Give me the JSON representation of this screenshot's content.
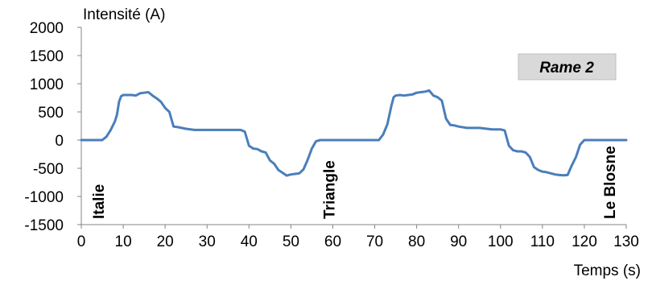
{
  "chart_data": {
    "type": "line",
    "ylabel": "Intensité (A)",
    "xlabel": "Temps (s)",
    "xlim": [
      0,
      130
    ],
    "ylim": [
      -1500,
      2000
    ],
    "x_ticks": [
      0,
      10,
      20,
      30,
      40,
      50,
      60,
      70,
      80,
      90,
      100,
      110,
      120,
      130
    ],
    "y_ticks": [
      -1500,
      -1000,
      -500,
      0,
      500,
      1000,
      1500,
      2000
    ],
    "grid": false,
    "line_color": "#4a7ebb",
    "badge": "Rame 2",
    "station_labels": [
      {
        "label": "Italie",
        "x": 4
      },
      {
        "label": "Triangle",
        "x": 59
      },
      {
        "label": "Le Blosne",
        "x": 126
      }
    ],
    "series": [
      {
        "x": [
          0,
          4,
          5,
          6,
          7,
          8,
          8.5,
          9,
          9.5,
          10,
          11,
          12,
          13,
          14,
          15,
          16,
          17,
          18,
          19,
          20,
          21,
          22,
          23,
          25,
          27,
          30,
          35,
          37,
          38,
          39,
          40,
          41,
          42,
          43,
          44,
          45,
          46,
          47,
          48,
          49,
          50,
          51,
          52,
          53,
          54,
          55,
          56,
          57,
          60,
          65,
          70,
          71,
          72,
          73,
          74,
          74.5,
          75,
          76,
          77,
          78,
          79,
          80,
          81,
          82,
          83,
          84,
          85,
          86,
          87,
          88,
          89,
          90,
          92,
          95,
          98,
          100,
          101,
          102,
          103,
          104,
          105,
          106,
          107,
          108,
          109,
          110,
          111,
          112,
          113,
          114,
          115,
          116,
          117,
          118,
          119,
          120,
          125,
          130
        ],
        "y": [
          0,
          0,
          0,
          60,
          180,
          330,
          450,
          680,
          780,
          800,
          800,
          800,
          790,
          830,
          840,
          850,
          790,
          740,
          680,
          570,
          500,
          240,
          230,
          200,
          180,
          180,
          180,
          180,
          180,
          150,
          -100,
          -150,
          -160,
          -200,
          -220,
          -360,
          -420,
          -530,
          -580,
          -630,
          -610,
          -600,
          -590,
          -520,
          -350,
          -150,
          -20,
          0,
          0,
          0,
          0,
          0,
          100,
          280,
          620,
          760,
          790,
          800,
          790,
          800,
          810,
          840,
          850,
          860,
          880,
          790,
          760,
          700,
          380,
          270,
          260,
          240,
          215,
          215,
          190,
          190,
          170,
          -100,
          -180,
          -200,
          -200,
          -220,
          -300,
          -480,
          -530,
          -560,
          -570,
          -590,
          -610,
          -620,
          -625,
          -620,
          -450,
          -300,
          -80,
          0,
          0,
          0
        ]
      }
    ]
  }
}
